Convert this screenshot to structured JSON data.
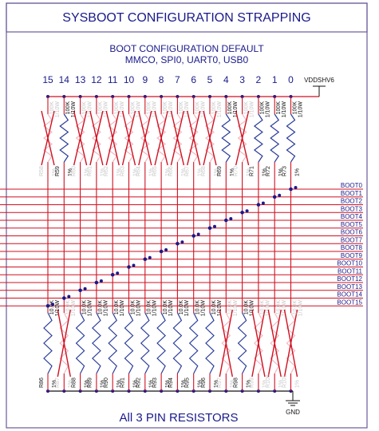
{
  "title": "SYSBOOT CONFIGURATION STRAPPING",
  "subtitle": [
    "BOOT CONFIGURATION DEFAULT",
    "MMCO, SPI0, UART0, USB0"
  ],
  "supply": "VDDSHV6",
  "ground": "GND",
  "footer": "All 3 PIN RESISTORS",
  "columns": [
    {
      "number": "15",
      "top": {
        "ref": "R58",
        "value": "100K",
        "power": "1/10W",
        "tolerance": "1%",
        "populated": false
      },
      "bottom": {
        "ref": "R86",
        "value": "10.0K",
        "power": "1/10W",
        "tolerance": "1%",
        "populated": true
      }
    },
    {
      "number": "14",
      "top": {
        "ref": "R59",
        "value": "100K",
        "power": "1/10W",
        "tolerance": "1%",
        "populated": true
      },
      "bottom": {
        "ref": "R87",
        "value": "10.0K",
        "power": "1/10W",
        "tolerance": "1%",
        "populated": false
      }
    },
    {
      "number": "13",
      "top": {
        "ref": "R60",
        "value": "100K",
        "power": "1/10W",
        "tolerance": "1%",
        "populated": false
      },
      "bottom": {
        "ref": "R88",
        "value": "10.0K",
        "power": "1/10W",
        "tolerance": "1%",
        "populated": true
      }
    },
    {
      "number": "12",
      "top": {
        "ref": "R61",
        "value": "100K",
        "power": "1/10W",
        "tolerance": "1%",
        "populated": false
      },
      "bottom": {
        "ref": "R89",
        "value": "10.0K",
        "power": "1/10W",
        "tolerance": "1%",
        "populated": true
      }
    },
    {
      "number": "11",
      "top": {
        "ref": "R62",
        "value": "100K",
        "power": "1/10W",
        "tolerance": "1%",
        "populated": false
      },
      "bottom": {
        "ref": "R90",
        "value": "10.0K",
        "power": "1/10W",
        "tolerance": "1%",
        "populated": true
      }
    },
    {
      "number": "10",
      "top": {
        "ref": "R63",
        "value": "100K",
        "power": "1/10W",
        "tolerance": "1%",
        "populated": false
      },
      "bottom": {
        "ref": "R91",
        "value": "10.0K",
        "power": "1/10W",
        "tolerance": "1%",
        "populated": true
      }
    },
    {
      "number": "9",
      "top": {
        "ref": "R64",
        "value": "100K",
        "power": "1/10W",
        "tolerance": "1%",
        "populated": false
      },
      "bottom": {
        "ref": "R92",
        "value": "10.0K",
        "power": "1/10W",
        "tolerance": "1%",
        "populated": true
      }
    },
    {
      "number": "8",
      "top": {
        "ref": "R65",
        "value": "100K",
        "power": "1/10W",
        "tolerance": "1%",
        "populated": false
      },
      "bottom": {
        "ref": "R93",
        "value": "10.0K",
        "power": "1/10W",
        "tolerance": "1%",
        "populated": true
      }
    },
    {
      "number": "7",
      "top": {
        "ref": "R66",
        "value": "100K",
        "power": "1/10W",
        "tolerance": "1%",
        "populated": false
      },
      "bottom": {
        "ref": "R94",
        "value": "10.0K",
        "power": "1/10W",
        "tolerance": "1%",
        "populated": true
      }
    },
    {
      "number": "6",
      "top": {
        "ref": "R67",
        "value": "100K",
        "power": "1/10W",
        "tolerance": "1%",
        "populated": false
      },
      "bottom": {
        "ref": "R95",
        "value": "10.0K",
        "power": "1/10W",
        "tolerance": "1%",
        "populated": true
      }
    },
    {
      "number": "5",
      "top": {
        "ref": "R68",
        "value": "100K",
        "power": "1/10W",
        "tolerance": "1%",
        "populated": false
      },
      "bottom": {
        "ref": "R96",
        "value": "10.0K",
        "power": "1/10W",
        "tolerance": "1%",
        "populated": true
      }
    },
    {
      "number": "4",
      "top": {
        "ref": "R69",
        "value": "100K",
        "power": "1/10W",
        "tolerance": "1%",
        "populated": true
      },
      "bottom": {
        "ref": "R97",
        "value": "10.0K",
        "power": "1/10W",
        "tolerance": "1%",
        "populated": false
      }
    },
    {
      "number": "3",
      "top": {
        "ref": "R70",
        "value": "100K",
        "power": "1/10W",
        "tolerance": "1%",
        "populated": false
      },
      "bottom": {
        "ref": "R98",
        "value": "10.0K",
        "power": "1/10W",
        "tolerance": "1%",
        "populated": true
      }
    },
    {
      "number": "2",
      "top": {
        "ref": "R71",
        "value": "100K",
        "power": "1/10W",
        "tolerance": "1%",
        "populated": true
      },
      "bottom": {
        "ref": "R99",
        "value": "10.0K",
        "power": "1/10W",
        "tolerance": "1%",
        "populated": false
      }
    },
    {
      "number": "1",
      "top": {
        "ref": "R72",
        "value": "100K",
        "power": "1/10W",
        "tolerance": "1%",
        "populated": true
      },
      "bottom": {
        "ref": "R100",
        "value": "10.0K",
        "power": "1/10W",
        "tolerance": "1%",
        "populated": false
      }
    },
    {
      "number": "0",
      "top": {
        "ref": "R73",
        "value": "100K",
        "power": "1/10W",
        "tolerance": "1%",
        "populated": true
      },
      "bottom": {
        "ref": "R101",
        "value": "10.0K",
        "power": "1/10W",
        "tolerance": "1%",
        "populated": false
      }
    }
  ],
  "signals": [
    "BOOT0",
    "BOOT1",
    "BOOT2",
    "BOOT3",
    "BOOT4",
    "BOOT5",
    "BOOT6",
    "BOOT7",
    "BOOT8",
    "BOOT9",
    "BOOT10",
    "BOOT11",
    "BOOT12",
    "BOOT13",
    "BOOT14",
    "BOOT15"
  ]
}
